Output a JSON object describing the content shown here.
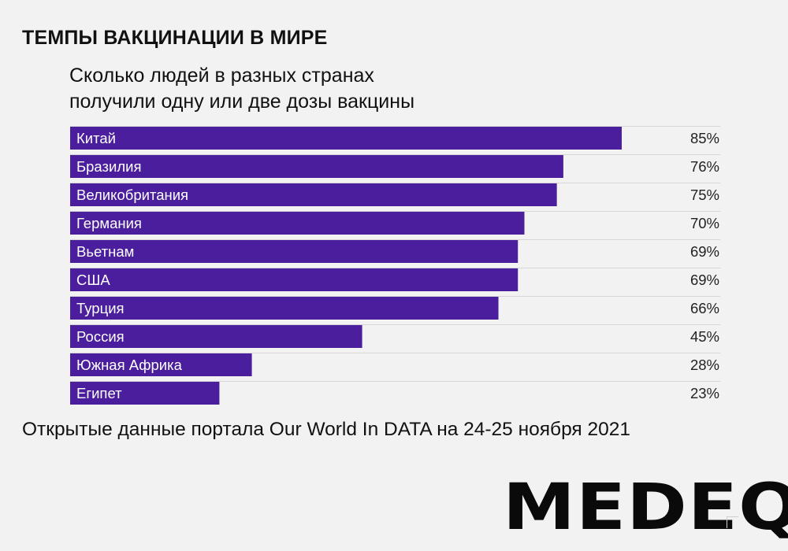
{
  "header": {
    "title": "ТЕМПЫ ВАКЦИНАЦИИ В МИРЕ",
    "subtitle_line1": "Сколько людей в разных странах",
    "subtitle_line2": "получили одну или две дозы вакцины"
  },
  "footer": {
    "source": "Открытые данные портала Our World In DATA на 24-25 ноября 2021",
    "logo": "MEDEQ"
  },
  "colors": {
    "bar": "#4a1e9c",
    "background": "#f2f2f2",
    "row_line": "#d6d6d6"
  },
  "chart_data": {
    "type": "bar",
    "orientation": "horizontal",
    "title": "ТЕМПЫ ВАКЦИНАЦИИ В МИРЕ",
    "subtitle": "Сколько людей в разных странах получили одну или две дозы вакцины",
    "categories": [
      "Китай",
      "Бразилия",
      "Великобритания",
      "Германия",
      "Вьетнам",
      "США",
      "Турция",
      "Россия",
      "Южная Африка",
      "Египет"
    ],
    "values": [
      85,
      76,
      75,
      70,
      69,
      69,
      66,
      45,
      28,
      23
    ],
    "value_labels": [
      "85%",
      "76%",
      "75%",
      "70%",
      "69%",
      "69%",
      "66%",
      "45%",
      "28%",
      "23%"
    ],
    "unit": "%",
    "xlim": [
      0,
      100
    ],
    "grid": false,
    "legend": "none"
  }
}
